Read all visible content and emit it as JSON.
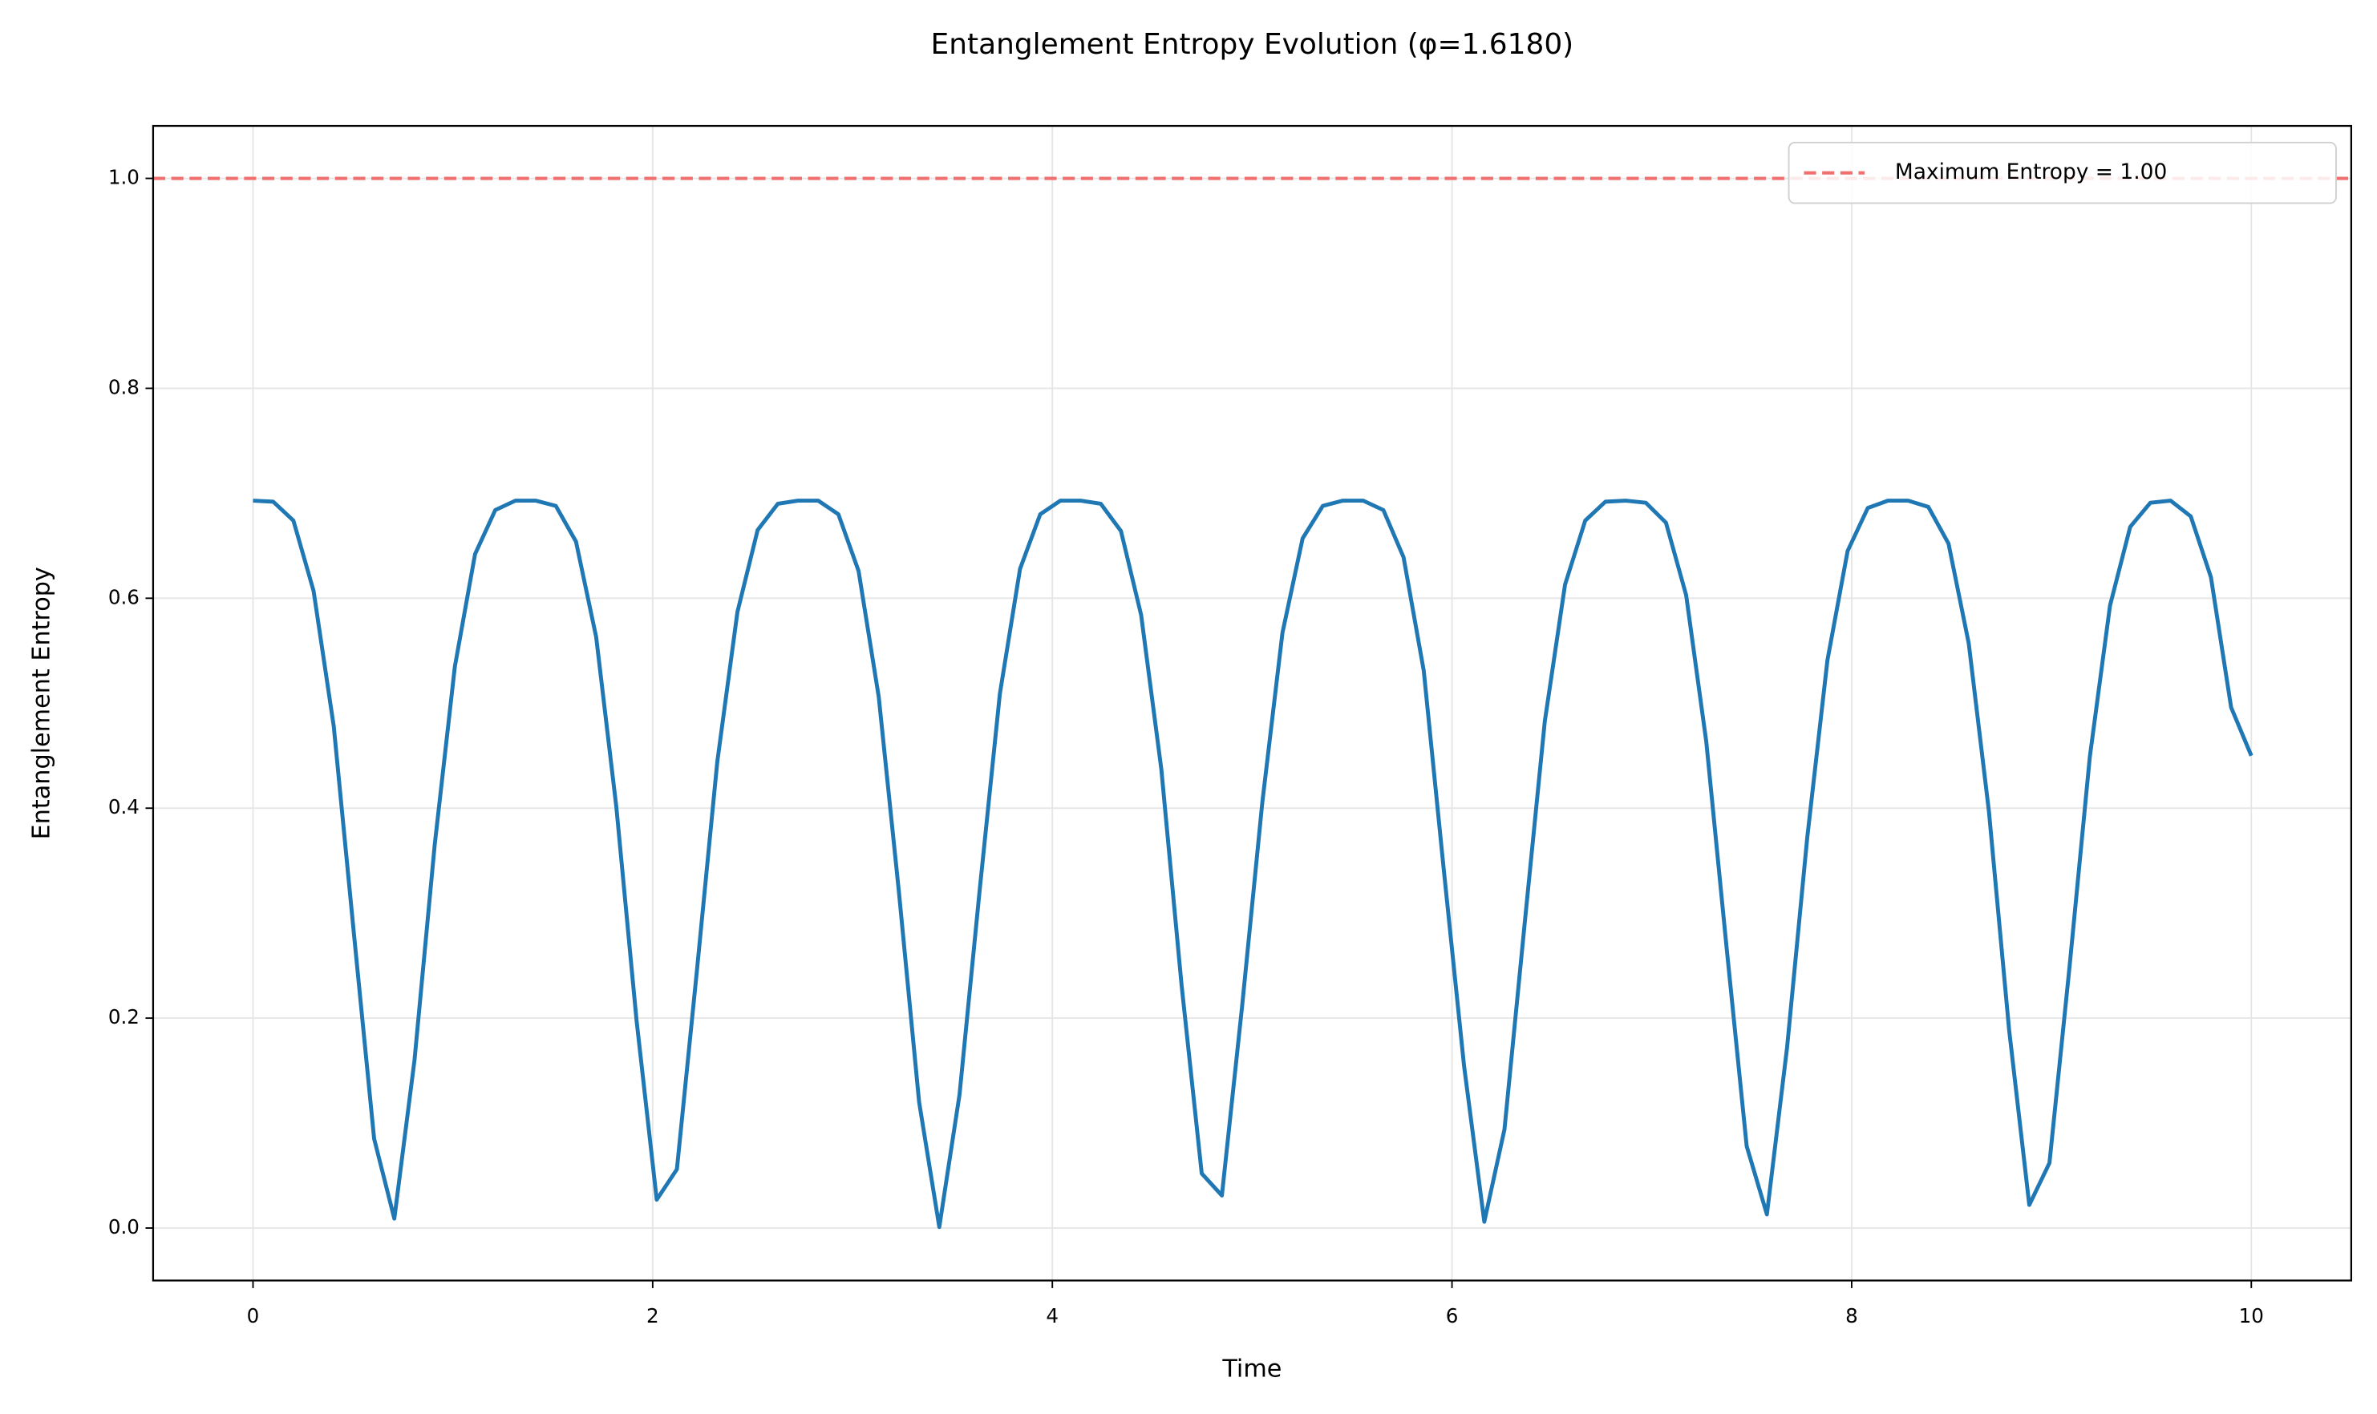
{
  "chart_data": {
    "type": "line",
    "title": "Entanglement Entropy Evolution (φ=1.6180)",
    "x_label": "Time",
    "y_label": "Entanglement Entropy",
    "x": [
      0,
      0.101,
      0.202,
      0.303,
      0.404,
      0.5051,
      0.6061,
      0.7071,
      0.8081,
      0.9091,
      1.0101,
      1.1111,
      1.2121,
      1.3131,
      1.4141,
      1.5152,
      1.6162,
      1.7172,
      1.8182,
      1.9192,
      2.0202,
      2.1212,
      2.2222,
      2.3232,
      2.4242,
      2.5253,
      2.6263,
      2.7273,
      2.8283,
      2.9293,
      3.0303,
      3.1313,
      3.2323,
      3.3333,
      3.4343,
      3.5354,
      3.6364,
      3.7374,
      3.8384,
      3.9394,
      4.0404,
      4.1414,
      4.2424,
      4.3434,
      4.4444,
      4.5455,
      4.6465,
      4.7475,
      4.8485,
      4.9495,
      5.0505,
      5.1515,
      5.2525,
      5.3535,
      5.4545,
      5.5556,
      5.6566,
      5.7576,
      5.8586,
      5.9596,
      6.0606,
      6.1616,
      6.2626,
      6.3636,
      6.4646,
      6.5657,
      6.6667,
      6.7677,
      6.8687,
      6.9697,
      7.0707,
      7.1717,
      7.2727,
      7.3737,
      7.4747,
      7.5758,
      7.6768,
      7.7778,
      7.8788,
      7.9798,
      8.0808,
      8.1818,
      8.2828,
      8.3838,
      8.4848,
      8.5859,
      8.6869,
      8.7879,
      8.8889,
      8.9899,
      9.0909,
      9.1919,
      9.2929,
      9.3939,
      9.4949,
      9.596,
      9.697,
      9.798,
      9.899,
      10
    ],
    "values": [
      0.693,
      0.692,
      0.674,
      0.607,
      0.478,
      0.28,
      0.085,
      0.009,
      0.16,
      0.365,
      0.535,
      0.642,
      0.684,
      0.693,
      0.693,
      0.688,
      0.654,
      0.563,
      0.401,
      0.198,
      0.027,
      0.056,
      0.247,
      0.444,
      0.587,
      0.665,
      0.69,
      0.693,
      0.693,
      0.68,
      0.626,
      0.506,
      0.32,
      0.12,
      0.001,
      0.127,
      0.322,
      0.509,
      0.628,
      0.68,
      0.693,
      0.693,
      0.69,
      0.664,
      0.584,
      0.437,
      0.232,
      0.052,
      0.031,
      0.211,
      0.405,
      0.567,
      0.657,
      0.688,
      0.693,
      0.693,
      0.684,
      0.639,
      0.531,
      0.34,
      0.154,
      0.006,
      0.094,
      0.29,
      0.483,
      0.613,
      0.674,
      0.692,
      0.693,
      0.691,
      0.672,
      0.603,
      0.463,
      0.268,
      0.078,
      0.013,
      0.172,
      0.372,
      0.541,
      0.645,
      0.686,
      0.693,
      0.693,
      0.687,
      0.652,
      0.557,
      0.397,
      0.189,
      0.022,
      0.062,
      0.25,
      0.449,
      0.593,
      0.668,
      0.691,
      0.693,
      0.678,
      0.62,
      0.496,
      0.45
    ],
    "color": "#1f77b4",
    "reference_line": {
      "value": 1.0,
      "label": "Maximum Entropy = 1.00",
      "color": "#f07070"
    },
    "xlim": [
      -0.5,
      10.5
    ],
    "ylim": [
      -0.05,
      1.05
    ],
    "xticks": [
      0,
      2,
      4,
      6,
      8,
      10
    ],
    "yticks": [
      {
        "value": 0,
        "label": "0.0"
      },
      {
        "value": 0.2,
        "label": "0.2"
      },
      {
        "value": 0.4,
        "label": "0.4"
      },
      {
        "value": 0.6,
        "label": "0.6"
      },
      {
        "value": 0.8,
        "label": "0.8"
      },
      {
        "value": 1,
        "label": "1.0"
      }
    ],
    "grid": true,
    "legend": "upper right"
  }
}
